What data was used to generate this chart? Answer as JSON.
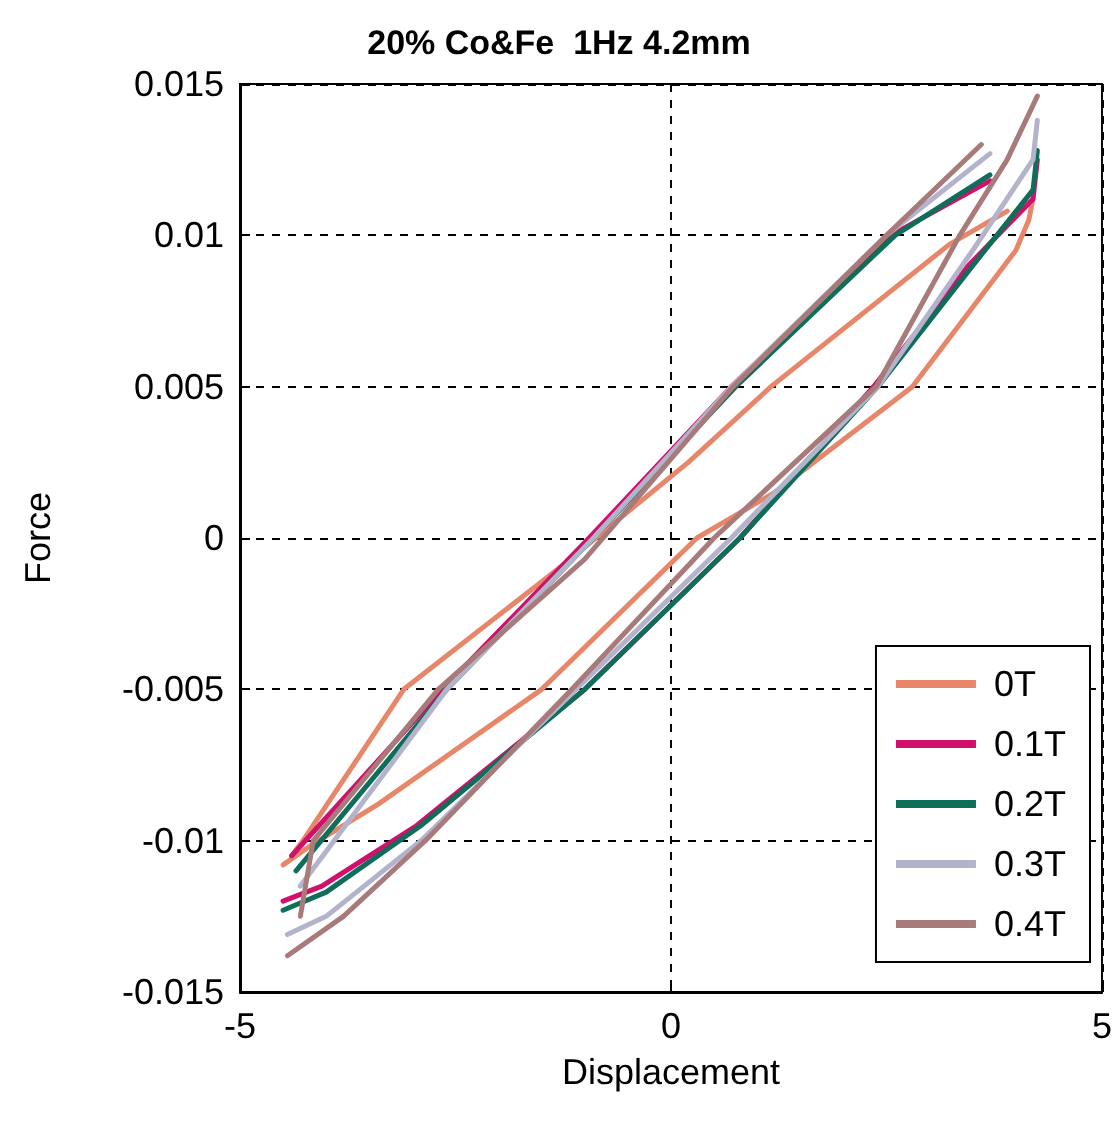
{
  "chart_data": {
    "type": "line",
    "title": "20% Co&Fe  1Hz 4.2mm",
    "xlabel": "Displacement",
    "ylabel": "Force",
    "xlim": [
      -5,
      5
    ],
    "xticks": [
      -5,
      0,
      5
    ],
    "ylim": [
      -0.015,
      0.015
    ],
    "yticks": [
      -0.015,
      -0.01,
      -0.005,
      0,
      0.005,
      0.01,
      0.015
    ],
    "grid": true,
    "legend": "bottom right",
    "marker": "none",
    "line_style": "solid",
    "series": [
      {
        "name": "0T",
        "color": "#e8866a",
        "x": [
          -4.5,
          -4.2,
          -3.4,
          -1.5,
          0.3,
          1.2,
          2.8,
          4.0,
          4.15,
          4.2
        ],
        "values": [
          -0.0108,
          -0.0102,
          -0.0088,
          -0.005,
          0,
          0.0015,
          0.005,
          0.0095,
          0.0105,
          0.0112
        ]
      },
      {
        "color": "#e8866a",
        "x": [
          -4.4,
          -4.27,
          -3.1,
          -1.3,
          0.2,
          1.16,
          3.23,
          3.9
        ],
        "values": [
          -0.0105,
          -0.01,
          -0.005,
          -0.001,
          0.0025,
          0.005,
          0.0097,
          0.0108
        ]
      },
      {
        "name": "0.1T",
        "color": "#d0106a",
        "x": [
          -4.5,
          -4.05,
          -2.95,
          -1.0,
          0.8,
          2.35,
          3.45,
          4.2,
          4.25
        ],
        "values": [
          -0.012,
          -0.0115,
          -0.0095,
          -0.005,
          0,
          0.005,
          0.009,
          0.0112,
          0.0125
        ]
      },
      {
        "color": "#d0106a",
        "x": [
          -4.4,
          -2.65,
          -0.95,
          0.7,
          2.55,
          3.7
        ],
        "values": [
          -0.0105,
          -0.005,
          0,
          0.005,
          0.01,
          0.0118
        ]
      },
      {
        "name": "0.2T",
        "color": "#0e6e5a",
        "x": [
          -4.5,
          -4.0,
          -2.9,
          -1.0,
          0.8,
          2.4,
          3.5,
          4.2,
          4.25
        ],
        "values": [
          -0.0123,
          -0.0117,
          -0.0095,
          -0.005,
          0,
          0.005,
          0.009,
          0.0115,
          0.0128
        ]
      },
      {
        "color": "#0e6e5a",
        "x": [
          -4.35,
          -2.6,
          -0.9,
          0.75,
          2.6,
          3.7
        ],
        "values": [
          -0.011,
          -0.005,
          0,
          0.005,
          0.01,
          0.012
        ]
      },
      {
        "name": "0.3T",
        "color": "#b3b3cc",
        "x": [
          -4.45,
          -4.0,
          -2.9,
          -1.1,
          0.7,
          2.4,
          3.5,
          4.2,
          4.25
        ],
        "values": [
          -0.0131,
          -0.0125,
          -0.01,
          -0.005,
          0,
          0.005,
          0.0095,
          0.0125,
          0.0138
        ]
      },
      {
        "color": "#b3b3cc",
        "x": [
          -4.3,
          -2.6,
          -0.9,
          0.7,
          2.5,
          3.7
        ],
        "values": [
          -0.0115,
          -0.005,
          0,
          0.005,
          0.01,
          0.0127
        ]
      },
      {
        "name": "0.4T",
        "color": "#a87a7a",
        "x": [
          -4.45,
          -3.8,
          -2.85,
          -1.15,
          0.5,
          2.38,
          3.35,
          3.9,
          4.25
        ],
        "values": [
          -0.0138,
          -0.0125,
          -0.01,
          -0.005,
          0,
          0.005,
          0.01,
          0.0125,
          0.0146
        ]
      },
      {
        "color": "#a87a7a",
        "x": [
          -4.3,
          -4.15,
          -2.7,
          -1.0,
          0.72,
          2.5,
          3.6
        ],
        "values": [
          -0.0125,
          -0.01,
          -0.005,
          -0.0007,
          0.005,
          0.01,
          0.013
        ]
      }
    ]
  }
}
